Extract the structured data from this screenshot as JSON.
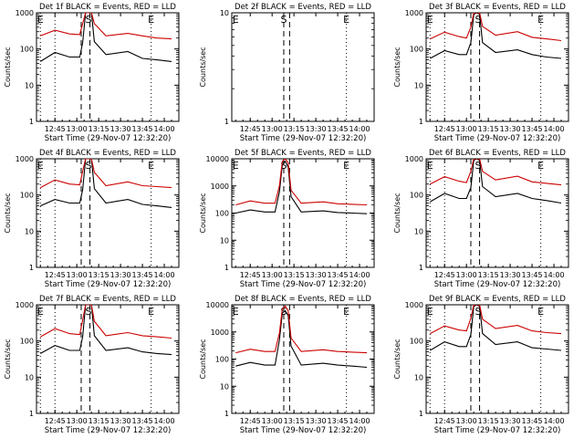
{
  "figure": {
    "colors": {
      "events": "#000000",
      "lld": "#cc0000",
      "axis": "#000000"
    }
  },
  "chart_data": [
    {
      "type": "line",
      "title": "Det 1f BLACK = Events, RED = LLD",
      "xlabel": "Start Time (29-Nov-07 12:32:20)",
      "ylabel": "Counts/sec",
      "yscale": "log",
      "ylim": [
        1,
        1000
      ],
      "xticks": [
        "12:45",
        "13:00",
        "13:15",
        "13:30",
        "13:45",
        "14:00"
      ],
      "yticks": [
        "1",
        "10",
        "100",
        "1000"
      ],
      "markers": [
        {
          "label": "E",
          "time": "12:35",
          "style": "dotted"
        },
        {
          "label": "S",
          "time": "13:08",
          "style": "none"
        },
        {
          "label": "E",
          "time": "13:51",
          "style": "dotted"
        }
      ],
      "vlines": [
        {
          "time": "12:45",
          "style": "dotted"
        },
        {
          "time": "13:03",
          "style": "dashed"
        },
        {
          "time": "13:09",
          "style": "dashed"
        }
      ],
      "series": [
        {
          "color": "#000000",
          "x": [
            "12:35",
            "12:45",
            "12:55",
            "13:02",
            "13:04",
            "13:06",
            "13:08",
            "13:10",
            "13:12",
            "13:20",
            "13:35",
            "13:45",
            "13:55",
            "14:05"
          ],
          "y": [
            45,
            80,
            60,
            60,
            150,
            1000,
            1000,
            1000,
            160,
            70,
            85,
            55,
            50,
            45
          ]
        },
        {
          "color": "#cc0000",
          "x": [
            "12:35",
            "12:45",
            "12:55",
            "13:02",
            "13:04",
            "13:06",
            "13:08",
            "13:10",
            "13:12",
            "13:20",
            "13:35",
            "13:45",
            "13:55",
            "14:05"
          ],
          "y": [
            230,
            330,
            260,
            250,
            500,
            1000,
            1000,
            1000,
            500,
            230,
            270,
            230,
            200,
            190
          ]
        }
      ]
    },
    {
      "type": "line",
      "title": "Det 2f BLACK = Events, RED = LLD",
      "xlabel": "Start Time (29-Nov-07 12:32:20)",
      "ylabel": "Counts/sec",
      "yscale": "log",
      "ylim": [
        1,
        10
      ],
      "xticks": [
        "12:45",
        "13:00",
        "13:15",
        "13:30",
        "13:45",
        "14:00"
      ],
      "yticks": [
        "1",
        "10"
      ],
      "markers": [
        {
          "label": "E",
          "time": "12:35",
          "style": "none"
        },
        {
          "label": "S",
          "time": "13:08",
          "style": "dashed"
        },
        {
          "label": "E",
          "time": "13:51",
          "style": "dotted"
        }
      ],
      "vlines": [
        {
          "time": "13:12",
          "style": "dashed"
        }
      ],
      "series": []
    },
    {
      "type": "line",
      "title": "Det 3f BLACK = Events, RED = LLD",
      "xlabel": "Start Time (29-Nov-07 12:32:20)",
      "ylabel": "Counts/sec",
      "yscale": "log",
      "ylim": [
        1,
        1000
      ],
      "xticks": [
        "12:45",
        "13:00",
        "13:15",
        "13:30",
        "13:45",
        "14:00"
      ],
      "yticks": [
        "1",
        "10",
        "100",
        "1000"
      ],
      "markers": [
        {
          "label": "E",
          "time": "12:35",
          "style": "dotted"
        },
        {
          "label": "S",
          "time": "13:08",
          "style": "none"
        },
        {
          "label": "E",
          "time": "13:51",
          "style": "dotted"
        }
      ],
      "vlines": [
        {
          "time": "12:45",
          "style": "dotted"
        },
        {
          "time": "13:03",
          "style": "dashed"
        },
        {
          "time": "13:09",
          "style": "dashed"
        }
      ],
      "series": [
        {
          "color": "#000000",
          "x": [
            "12:35",
            "12:45",
            "12:55",
            "13:00",
            "13:03",
            "13:05",
            "13:07",
            "13:09",
            "13:11",
            "13:20",
            "13:35",
            "13:45",
            "13:55",
            "14:05"
          ],
          "y": [
            55,
            90,
            70,
            70,
            150,
            900,
            1000,
            900,
            150,
            80,
            95,
            70,
            60,
            55
          ]
        },
        {
          "color": "#cc0000",
          "x": [
            "12:35",
            "12:45",
            "12:55",
            "13:00",
            "13:03",
            "13:05",
            "13:07",
            "13:09",
            "13:11",
            "13:20",
            "13:35",
            "13:45",
            "13:55",
            "14:05"
          ],
          "y": [
            190,
            290,
            220,
            200,
            400,
            1000,
            1000,
            1000,
            420,
            240,
            300,
            210,
            190,
            170
          ]
        }
      ]
    },
    {
      "type": "line",
      "title": "Det 4f BLACK = Events, RED = LLD",
      "xlabel": "Start Time (29-Nov-07 12:32:20)",
      "ylabel": "Counts/sec",
      "yscale": "log",
      "ylim": [
        1,
        1000
      ],
      "xticks": [
        "12:45",
        "13:00",
        "13:15",
        "13:30",
        "13:45",
        "14:00"
      ],
      "yticks": [
        "1",
        "10",
        "100",
        "1000"
      ],
      "markers": [
        {
          "label": "E",
          "time": "12:35",
          "style": "dotted"
        },
        {
          "label": "S",
          "time": "13:08",
          "style": "none"
        },
        {
          "label": "E",
          "time": "13:51",
          "style": "dotted"
        }
      ],
      "vlines": [
        {
          "time": "12:45",
          "style": "dotted"
        },
        {
          "time": "13:03",
          "style": "dashed"
        },
        {
          "time": "13:09",
          "style": "dashed"
        }
      ],
      "series": [
        {
          "color": "#000000",
          "x": [
            "12:35",
            "12:45",
            "12:55",
            "13:02",
            "13:04",
            "13:06",
            "13:08",
            "13:10",
            "13:12",
            "13:20",
            "13:35",
            "13:45",
            "13:55",
            "14:05"
          ],
          "y": [
            50,
            75,
            60,
            60,
            140,
            1000,
            1000,
            1000,
            150,
            60,
            75,
            55,
            50,
            45
          ]
        },
        {
          "color": "#cc0000",
          "x": [
            "12:35",
            "12:45",
            "12:55",
            "13:02",
            "13:04",
            "13:06",
            "13:08",
            "13:10",
            "13:12",
            "13:20",
            "13:35",
            "13:45",
            "13:55",
            "14:05"
          ],
          "y": [
            160,
            260,
            200,
            190,
            450,
            1000,
            1000,
            1000,
            420,
            180,
            230,
            180,
            170,
            160
          ]
        }
      ]
    },
    {
      "type": "line",
      "title": "Det 5f BLACK = Events, RED = LLD",
      "xlabel": "Start Time (29-Nov-07 12:32:20)",
      "ylabel": "Counts/sec",
      "yscale": "log",
      "ylim": [
        1,
        10000
      ],
      "xticks": [
        "12:45",
        "13:00",
        "13:15",
        "13:30",
        "13:45",
        "14:00"
      ],
      "yticks": [
        "1",
        "10",
        "100",
        "1000",
        "10000"
      ],
      "markers": [
        {
          "label": "E",
          "time": "12:35",
          "style": "none"
        },
        {
          "label": "S",
          "time": "13:08",
          "style": "dashed"
        },
        {
          "label": "E",
          "time": "13:51",
          "style": "dotted"
        }
      ],
      "vlines": [
        {
          "time": "13:12",
          "style": "dashed"
        }
      ],
      "series": [
        {
          "color": "#000000",
          "x": [
            "12:35",
            "12:45",
            "12:55",
            "13:02",
            "13:05",
            "13:07",
            "13:09",
            "13:11",
            "13:13",
            "13:20",
            "13:35",
            "13:45",
            "13:55",
            "14:05"
          ],
          "y": [
            100,
            130,
            110,
            110,
            600,
            6000,
            8000,
            5000,
            400,
            110,
            120,
            105,
            100,
            95
          ]
        },
        {
          "color": "#cc0000",
          "x": [
            "12:35",
            "12:45",
            "12:55",
            "13:02",
            "13:05",
            "13:07",
            "13:09",
            "13:11",
            "13:13",
            "13:20",
            "13:35",
            "13:45",
            "13:55",
            "14:05"
          ],
          "y": [
            200,
            280,
            230,
            230,
            1000,
            8000,
            10000,
            7000,
            700,
            230,
            260,
            220,
            210,
            200
          ]
        }
      ]
    },
    {
      "type": "line",
      "title": "Det 6f BLACK = Events, RED = LLD",
      "xlabel": "Start Time (29-Nov-07 12:32:20)",
      "ylabel": "Counts/sec",
      "yscale": "log",
      "ylim": [
        1,
        1000
      ],
      "xticks": [
        "12:45",
        "13:00",
        "13:15",
        "13:30",
        "13:45",
        "14:00"
      ],
      "yticks": [
        "1",
        "10",
        "100",
        "1000"
      ],
      "markers": [
        {
          "label": "E",
          "time": "12:35",
          "style": "dotted"
        },
        {
          "label": "S",
          "time": "13:08",
          "style": "none"
        },
        {
          "label": "E",
          "time": "13:51",
          "style": "dotted"
        }
      ],
      "vlines": [
        {
          "time": "12:45",
          "style": "dotted"
        },
        {
          "time": "13:03",
          "style": "dashed"
        },
        {
          "time": "13:09",
          "style": "dashed"
        }
      ],
      "series": [
        {
          "color": "#000000",
          "x": [
            "12:35",
            "12:45",
            "12:55",
            "13:00",
            "13:03",
            "13:05",
            "13:07",
            "13:09",
            "13:11",
            "13:20",
            "13:35",
            "13:45",
            "13:55",
            "14:05"
          ],
          "y": [
            65,
            110,
            80,
            80,
            160,
            900,
            1000,
            900,
            170,
            90,
            110,
            80,
            70,
            60
          ]
        },
        {
          "color": "#cc0000",
          "x": [
            "12:35",
            "12:45",
            "12:55",
            "13:00",
            "13:03",
            "13:05",
            "13:07",
            "13:09",
            "13:11",
            "13:20",
            "13:35",
            "13:45",
            "13:55",
            "14:05"
          ],
          "y": [
            200,
            320,
            240,
            220,
            450,
            1000,
            1000,
            1000,
            450,
            260,
            330,
            230,
            210,
            190
          ]
        }
      ]
    },
    {
      "type": "line",
      "title": "Det 7f BLACK = Events, RED = LLD",
      "xlabel": "Start Time (29-Nov-07 12:32:20)",
      "ylabel": "Counts/sec",
      "yscale": "log",
      "ylim": [
        1,
        1000
      ],
      "xticks": [
        "12:45",
        "13:00",
        "13:15",
        "13:30",
        "13:45",
        "14:00"
      ],
      "yticks": [
        "1",
        "10",
        "100",
        "1000"
      ],
      "markers": [
        {
          "label": "E",
          "time": "12:35",
          "style": "dotted"
        },
        {
          "label": "S",
          "time": "13:08",
          "style": "none"
        },
        {
          "label": "E",
          "time": "13:51",
          "style": "dotted"
        }
      ],
      "vlines": [
        {
          "time": "12:45",
          "style": "dotted"
        },
        {
          "time": "13:03",
          "style": "dashed"
        },
        {
          "time": "13:09",
          "style": "dashed"
        }
      ],
      "series": [
        {
          "color": "#000000",
          "x": [
            "12:35",
            "12:45",
            "12:55",
            "13:02",
            "13:04",
            "13:06",
            "13:08",
            "13:10",
            "13:12",
            "13:20",
            "13:35",
            "13:45",
            "13:55",
            "14:05"
          ],
          "y": [
            45,
            75,
            55,
            55,
            130,
            1000,
            1000,
            1000,
            140,
            55,
            65,
            50,
            45,
            42
          ]
        },
        {
          "color": "#cc0000",
          "x": [
            "12:35",
            "12:45",
            "12:55",
            "13:02",
            "13:04",
            "13:06",
            "13:08",
            "13:10",
            "13:12",
            "13:20",
            "13:35",
            "13:45",
            "13:55",
            "14:05"
          ],
          "y": [
            130,
            220,
            160,
            150,
            380,
            1000,
            1000,
            1000,
            350,
            140,
            170,
            140,
            130,
            120
          ]
        }
      ]
    },
    {
      "type": "line",
      "title": "Det 8f BLACK = Events, RED = LLD",
      "xlabel": "Start Time (29-Nov-07 12:32:20)",
      "ylabel": "Counts/sec",
      "yscale": "log",
      "ylim": [
        1,
        10000
      ],
      "xticks": [
        "12:45",
        "13:00",
        "13:15",
        "13:30",
        "13:45",
        "14:00"
      ],
      "yticks": [
        "1",
        "10",
        "100",
        "1000",
        "10000"
      ],
      "markers": [
        {
          "label": "E",
          "time": "12:35",
          "style": "none"
        },
        {
          "label": "S",
          "time": "13:08",
          "style": "dashed"
        },
        {
          "label": "E",
          "time": "13:51",
          "style": "dotted"
        }
      ],
      "vlines": [
        {
          "time": "13:12",
          "style": "dashed"
        }
      ],
      "series": [
        {
          "color": "#000000",
          "x": [
            "12:35",
            "12:45",
            "12:55",
            "13:02",
            "13:05",
            "13:07",
            "13:09",
            "13:11",
            "13:13",
            "13:20",
            "13:35",
            "13:45",
            "13:55",
            "14:05"
          ],
          "y": [
            55,
            75,
            60,
            60,
            500,
            5000,
            6000,
            4000,
            300,
            60,
            70,
            60,
            55,
            50
          ]
        },
        {
          "color": "#cc0000",
          "x": [
            "12:35",
            "12:45",
            "12:55",
            "13:02",
            "13:05",
            "13:07",
            "13:09",
            "13:11",
            "13:13",
            "13:20",
            "13:35",
            "13:45",
            "13:55",
            "14:05"
          ],
          "y": [
            170,
            230,
            190,
            190,
            900,
            7000,
            9000,
            6000,
            600,
            190,
            220,
            190,
            180,
            170
          ]
        }
      ]
    },
    {
      "type": "line",
      "title": "Det 9f BLACK = Events, RED = LLD",
      "xlabel": "Start Time (29-Nov-07 12:32:20)",
      "ylabel": "Counts/sec",
      "yscale": "log",
      "ylim": [
        1,
        1000
      ],
      "xticks": [
        "12:45",
        "13:00",
        "13:15",
        "13:30",
        "13:45",
        "14:00"
      ],
      "yticks": [
        "1",
        "10",
        "100",
        "1000"
      ],
      "markers": [
        {
          "label": "E",
          "time": "12:35",
          "style": "dotted"
        },
        {
          "label": "S",
          "time": "13:08",
          "style": "none"
        },
        {
          "label": "E",
          "time": "13:51",
          "style": "dotted"
        }
      ],
      "vlines": [
        {
          "time": "12:45",
          "style": "dotted"
        },
        {
          "time": "13:03",
          "style": "dashed"
        },
        {
          "time": "13:09",
          "style": "dashed"
        }
      ],
      "series": [
        {
          "color": "#000000",
          "x": [
            "12:35",
            "12:45",
            "12:55",
            "13:00",
            "13:03",
            "13:05",
            "13:07",
            "13:09",
            "13:11",
            "13:20",
            "13:35",
            "13:45",
            "13:55",
            "14:05"
          ],
          "y": [
            55,
            95,
            70,
            70,
            150,
            900,
            1000,
            900,
            160,
            80,
            95,
            65,
            60,
            55
          ]
        },
        {
          "color": "#cc0000",
          "x": [
            "12:35",
            "12:45",
            "12:55",
            "13:00",
            "13:03",
            "13:05",
            "13:07",
            "13:09",
            "13:11",
            "13:20",
            "13:35",
            "13:45",
            "13:55",
            "14:05"
          ],
          "y": [
            160,
            260,
            200,
            190,
            420,
            1000,
            1000,
            1000,
            400,
            220,
            270,
            190,
            170,
            160
          ]
        }
      ]
    }
  ]
}
